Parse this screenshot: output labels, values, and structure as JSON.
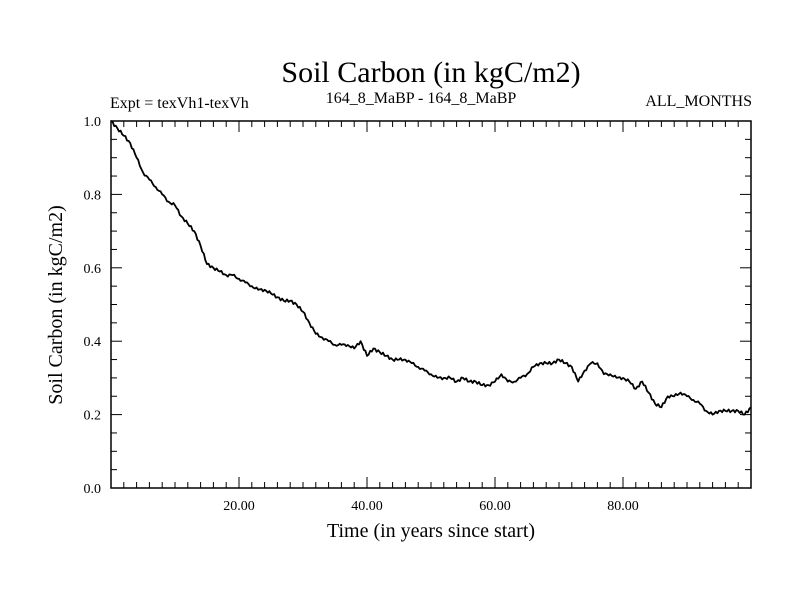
{
  "chart_data": {
    "type": "line",
    "title": "Soil Carbon (in kgC/m2)",
    "subtitle_left": "Expt = texVh1-texVh",
    "subtitle_center": "164_8_MaBP - 164_8_MaBP",
    "subtitle_right": "ALL_MONTHS",
    "xlabel": "Time (in years since start)",
    "ylabel": "Soil Carbon (in kgC/m2)",
    "xlim": [
      0,
      100
    ],
    "ylim": [
      0,
      1
    ],
    "x_ticks": [
      20,
      40,
      60,
      80
    ],
    "x_tick_labels": [
      "20.00",
      "40.00",
      "60.00",
      "80.00"
    ],
    "y_ticks": [
      0,
      0.2,
      0.4,
      0.6,
      0.8,
      1.0
    ],
    "y_tick_labels": [
      "0.0",
      "0.2",
      "0.4",
      "0.6",
      "0.8",
      "1.0"
    ],
    "series": [
      {
        "name": "Soil Carbon",
        "color": "#000000",
        "x": [
          0,
          1,
          2,
          3,
          4,
          5,
          6,
          7,
          8,
          9,
          10,
          11,
          12,
          13,
          14,
          15,
          16,
          17,
          18,
          19,
          20,
          21,
          22,
          23,
          24,
          25,
          26,
          27,
          28,
          29,
          30,
          31,
          32,
          33,
          34,
          35,
          36,
          37,
          38,
          39,
          40,
          41,
          42,
          43,
          44,
          45,
          46,
          47,
          48,
          49,
          50,
          51,
          52,
          53,
          54,
          55,
          56,
          57,
          58,
          59,
          60,
          61,
          62,
          63,
          64,
          65,
          66,
          67,
          68,
          69,
          70,
          71,
          72,
          73,
          74,
          75,
          76,
          77,
          78,
          79,
          80,
          81,
          82,
          83,
          84,
          85,
          86,
          87,
          88,
          89,
          90,
          91,
          92,
          93,
          94,
          95,
          96,
          97,
          98,
          99,
          100
        ],
        "values": [
          1.0,
          0.98,
          0.96,
          0.94,
          0.9,
          0.86,
          0.84,
          0.82,
          0.8,
          0.78,
          0.77,
          0.74,
          0.72,
          0.7,
          0.66,
          0.61,
          0.6,
          0.59,
          0.58,
          0.58,
          0.57,
          0.56,
          0.55,
          0.54,
          0.54,
          0.53,
          0.52,
          0.51,
          0.51,
          0.5,
          0.48,
          0.45,
          0.42,
          0.41,
          0.4,
          0.39,
          0.39,
          0.39,
          0.38,
          0.4,
          0.36,
          0.38,
          0.37,
          0.36,
          0.35,
          0.35,
          0.35,
          0.34,
          0.33,
          0.32,
          0.31,
          0.3,
          0.3,
          0.3,
          0.29,
          0.3,
          0.29,
          0.29,
          0.28,
          0.28,
          0.29,
          0.31,
          0.29,
          0.29,
          0.3,
          0.31,
          0.33,
          0.34,
          0.34,
          0.34,
          0.35,
          0.34,
          0.33,
          0.29,
          0.32,
          0.34,
          0.34,
          0.31,
          0.31,
          0.3,
          0.3,
          0.29,
          0.27,
          0.29,
          0.26,
          0.23,
          0.22,
          0.25,
          0.25,
          0.26,
          0.25,
          0.24,
          0.23,
          0.21,
          0.2,
          0.21,
          0.21,
          0.21,
          0.21,
          0.2,
          0.22
        ]
      }
    ]
  }
}
